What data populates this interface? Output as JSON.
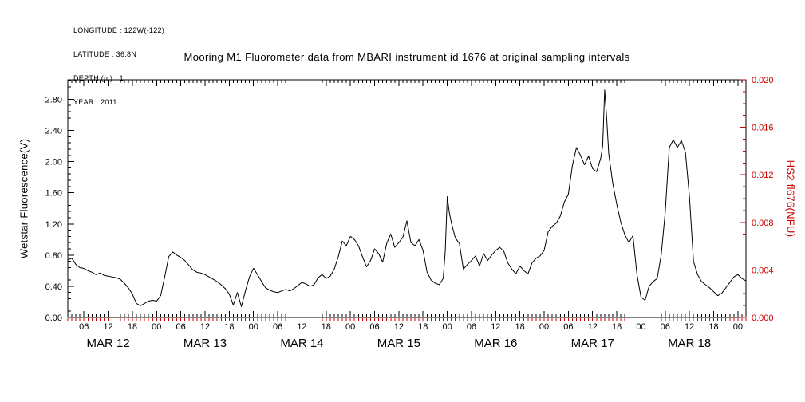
{
  "page": {
    "background": "#ffffff",
    "accent_red": "#cc0000",
    "ink": "#000000"
  },
  "meta": {
    "lines": [
      "LONGITUDE : 122W(-122)",
      "LATITUDE : 36.8N",
      "DEPTH (m) : 1",
      "YEAR : 2011"
    ]
  },
  "chart_data": {
    "type": "line",
    "title": "Mooring M1 Fluorometer data from MBARI instrument id 1676 at original sampling intervals",
    "grid": false,
    "legend": "none",
    "x_axis": {
      "range_hours": [
        2,
        170
      ],
      "major_tick_step_hours": 6,
      "minor_tick_step_hours": 1,
      "tick_labels": [
        "06",
        "12",
        "18",
        "00",
        "06",
        "12",
        "18",
        "00",
        "06",
        "12",
        "18",
        "00",
        "06",
        "12",
        "18",
        "00",
        "06",
        "12",
        "18",
        "00",
        "06",
        "12",
        "18",
        "00",
        "06",
        "12",
        "18",
        "00"
      ],
      "date_labels": [
        "MAR 12",
        "MAR 13",
        "MAR 14",
        "MAR 15",
        "MAR 16",
        "MAR 17",
        "MAR 18"
      ]
    },
    "y_left": {
      "label": "Wetstar Fluorescence(V)",
      "range": [
        0,
        3.05
      ],
      "major_step": 0.4,
      "tick_labels": [
        "0.00",
        "0.40",
        "0.80",
        "1.20",
        "1.60",
        "2.00",
        "2.40",
        "2.80"
      ],
      "color": "#000000"
    },
    "y_right": {
      "label": "HS2 fl676(NFU)",
      "range": [
        0,
        0.02
      ],
      "major_step": 0.004,
      "tick_labels": [
        "0.000",
        "0.004",
        "0.008",
        "0.012",
        "0.016",
        "0.020"
      ],
      "color": "#cc0000"
    },
    "series": [
      {
        "name": "Wetstar Fluorescence (V)",
        "axis": "left",
        "color": "#000000",
        "t_hours": [
          2,
          3,
          4,
          5,
          6,
          7,
          8,
          9,
          10,
          11,
          12,
          13,
          14,
          15,
          16,
          17,
          18,
          19,
          20,
          21,
          22,
          23,
          24,
          25,
          26,
          27,
          28,
          29,
          30,
          31,
          32,
          33,
          34,
          35,
          36,
          37,
          38,
          39,
          40,
          41,
          42,
          43,
          44,
          45,
          46,
          47,
          48,
          49,
          50,
          51,
          52,
          53,
          54,
          55,
          56,
          57,
          58,
          59,
          60,
          61,
          62,
          63,
          64,
          65,
          66,
          67,
          68,
          69,
          70,
          71,
          72,
          73,
          74,
          75,
          76,
          77,
          78,
          79,
          80,
          81,
          82,
          83,
          84,
          85,
          86,
          87,
          88,
          89,
          90,
          91,
          92,
          93,
          94,
          95,
          95.5,
          96,
          96.5,
          97,
          98,
          99,
          100,
          101,
          102,
          103,
          104,
          105,
          106,
          107,
          108,
          109,
          110,
          111,
          112,
          113,
          114,
          115,
          116,
          117,
          118,
          119,
          120,
          121,
          122,
          123,
          124,
          125,
          126,
          127,
          128,
          129,
          130,
          131,
          132,
          133,
          134,
          134.5,
          135,
          135.5,
          136,
          137,
          138,
          139,
          140,
          141,
          142,
          143,
          144,
          145,
          146,
          147,
          148,
          149,
          150,
          151,
          152,
          153,
          154,
          155,
          156,
          157,
          158,
          159,
          160,
          161,
          162,
          163,
          164,
          165,
          166,
          167,
          168,
          169,
          170
        ],
        "values": [
          0.74,
          0.76,
          0.68,
          0.64,
          0.63,
          0.6,
          0.58,
          0.55,
          0.57,
          0.54,
          0.53,
          0.52,
          0.51,
          0.49,
          0.44,
          0.38,
          0.3,
          0.18,
          0.15,
          0.18,
          0.21,
          0.22,
          0.21,
          0.28,
          0.52,
          0.78,
          0.84,
          0.8,
          0.77,
          0.73,
          0.67,
          0.61,
          0.58,
          0.57,
          0.55,
          0.52,
          0.49,
          0.46,
          0.42,
          0.37,
          0.3,
          0.16,
          0.32,
          0.14,
          0.34,
          0.52,
          0.63,
          0.55,
          0.46,
          0.38,
          0.35,
          0.33,
          0.32,
          0.34,
          0.36,
          0.34,
          0.37,
          0.41,
          0.45,
          0.43,
          0.4,
          0.42,
          0.51,
          0.55,
          0.5,
          0.53,
          0.62,
          0.78,
          0.98,
          0.92,
          1.04,
          1.0,
          0.92,
          0.78,
          0.65,
          0.73,
          0.88,
          0.82,
          0.71,
          0.95,
          1.07,
          0.9,
          0.96,
          1.03,
          1.24,
          0.96,
          0.92,
          1.0,
          0.86,
          0.58,
          0.48,
          0.44,
          0.42,
          0.5,
          0.85,
          1.55,
          1.35,
          1.22,
          1.02,
          0.95,
          0.62,
          0.68,
          0.73,
          0.79,
          0.66,
          0.82,
          0.73,
          0.8,
          0.86,
          0.9,
          0.85,
          0.7,
          0.62,
          0.56,
          0.66,
          0.6,
          0.56,
          0.7,
          0.76,
          0.79,
          0.86,
          1.1,
          1.17,
          1.21,
          1.3,
          1.48,
          1.58,
          1.95,
          2.18,
          2.08,
          1.96,
          2.07,
          1.91,
          1.87,
          2.04,
          2.2,
          2.92,
          2.55,
          2.1,
          1.72,
          1.45,
          1.22,
          1.06,
          0.96,
          1.05,
          0.55,
          0.26,
          0.22,
          0.4,
          0.46,
          0.5,
          0.8,
          1.35,
          2.18,
          2.28,
          2.18,
          2.27,
          2.12,
          1.55,
          0.72,
          0.55,
          0.46,
          0.42,
          0.38,
          0.33,
          0.28,
          0.31,
          0.38,
          0.45,
          0.52,
          0.55,
          0.5,
          0.47
        ]
      },
      {
        "name": "HS2 fl676 (NFU)",
        "axis": "right",
        "color": "#cc0000",
        "t_hours": [
          2,
          170
        ],
        "values": [
          0.0,
          0.0
        ]
      }
    ]
  }
}
